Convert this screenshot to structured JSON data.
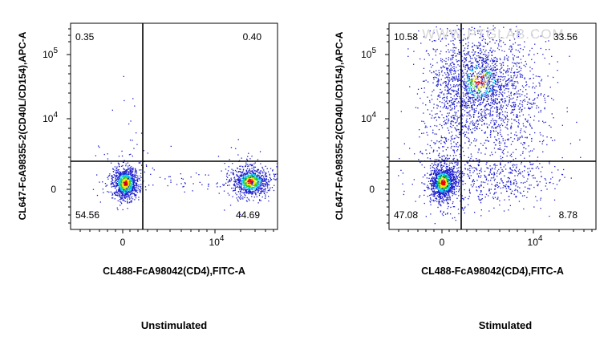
{
  "chart_data": [
    {
      "type": "scatter",
      "title": "",
      "caption": "Unstimulated",
      "xlabel": "CL488-FcA98042(CD4),FITC-A",
      "ylabel": "CL647-FcA98355-2(CD40L/CD154),APC-A",
      "x_scale": "biexponential",
      "y_scale": "biexponential",
      "x_ticks": [
        {
          "value": 0,
          "label": "0"
        },
        {
          "value": 10000,
          "label": "10",
          "exp": "4"
        }
      ],
      "y_ticks": [
        {
          "value": 0,
          "label": "0"
        },
        {
          "value": 10000,
          "label": "10",
          "exp": "4"
        },
        {
          "value": 100000,
          "label": "10",
          "exp": "5"
        }
      ],
      "quadrant_gate": {
        "x": 1500,
        "y": 1200
      },
      "quadrant_percentages": {
        "upper_left": "0.35",
        "upper_right": "0.40",
        "lower_left": "54.56",
        "lower_right": "44.69"
      },
      "populations": [
        {
          "name": "CD4- CD40L-",
          "center": {
            "x": 0,
            "y": 0
          },
          "percent": 54.56
        },
        {
          "name": "CD4+ CD40L-",
          "center": {
            "x": 20000,
            "y": 0
          },
          "percent": 44.69
        }
      ],
      "grid": false,
      "legend": "none",
      "color_map": "density (blue-cyan-green-yellow-red)"
    },
    {
      "type": "scatter",
      "title": "",
      "caption": "Stimulated",
      "xlabel": "CL488-FcA98042(CD4),FITC-A",
      "ylabel": "CL647-FcA98355-2(CD40L/CD154),APC-A",
      "x_scale": "biexponential",
      "y_scale": "biexponential",
      "x_ticks": [
        {
          "value": 0,
          "label": "0"
        },
        {
          "value": 10000,
          "label": "10",
          "exp": "4"
        }
      ],
      "y_ticks": [
        {
          "value": 0,
          "label": "0"
        },
        {
          "value": 10000,
          "label": "10",
          "exp": "4"
        },
        {
          "value": 100000,
          "label": "10",
          "exp": "5"
        }
      ],
      "quadrant_gate": {
        "x": 1500,
        "y": 1200
      },
      "quadrant_percentages": {
        "upper_left": "10.58",
        "upper_right": "33.56",
        "lower_left": "47.08",
        "lower_right": "8.78"
      },
      "populations": [
        {
          "name": "CD4- CD40L-",
          "center": {
            "x": 0,
            "y": 0
          },
          "percent": 47.08
        },
        {
          "name": "CD4+ CD40L+",
          "center": {
            "x": 5000,
            "y": 40000
          },
          "percent": 33.56
        }
      ],
      "grid": false,
      "legend": "none",
      "color_map": "density (blue-cyan-green-yellow-red)"
    }
  ],
  "watermark": "WWW.PTGLAB.COM",
  "colors": {
    "low": "#1d1dcc",
    "mid_low": "#00c8f0",
    "mid": "#22cc22",
    "mid_high": "#ffe400",
    "high": "#ee0000",
    "axis": "#000000",
    "watermark": "#d6d6d6"
  }
}
